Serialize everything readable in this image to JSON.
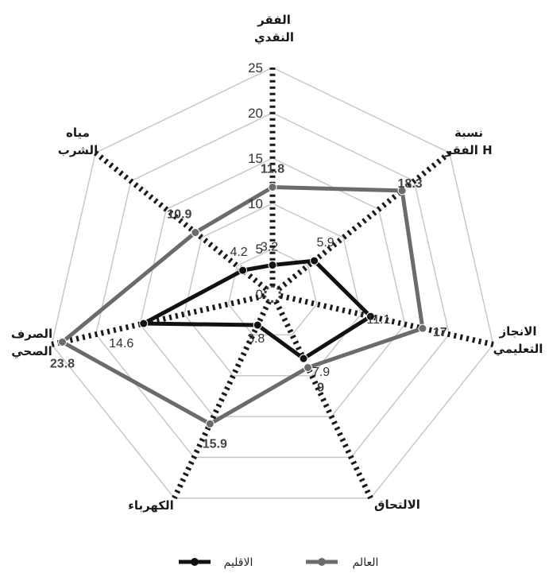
{
  "chart_data": {
    "type": "radar",
    "categories": [
      [
        "الفقر",
        "النقدي"
      ],
      [
        "نسبة",
        "الفقر H"
      ],
      [
        "الانجاز",
        "التعليمي"
      ],
      [
        "الالتحاق"
      ],
      [
        "الكهرباء"
      ],
      [
        "الصرف",
        "الصحي"
      ],
      [
        "مياه",
        "الشرب"
      ]
    ],
    "rlim": [
      0,
      25
    ],
    "ticks": [
      0,
      5,
      10,
      15,
      20,
      25
    ],
    "series": [
      {
        "name": "الاقليم",
        "values": [
          3.2,
          5.9,
          11.1,
          7.9,
          3.8,
          14.6,
          4.2
        ],
        "color": "#111111",
        "labels": [
          "3.2",
          "5.9",
          "11.1",
          "7.9",
          "3.8",
          "14.6",
          "4.2"
        ]
      },
      {
        "name": "العالم",
        "values": [
          11.8,
          18.3,
          17,
          9,
          15.9,
          23.8,
          10.9
        ],
        "color": "#6b6b6b",
        "labels": [
          "11.8",
          "18.3",
          "17",
          "9",
          "15.9",
          "23.8",
          "10.9"
        ]
      }
    ],
    "legend": "bottom",
    "grid": true
  }
}
